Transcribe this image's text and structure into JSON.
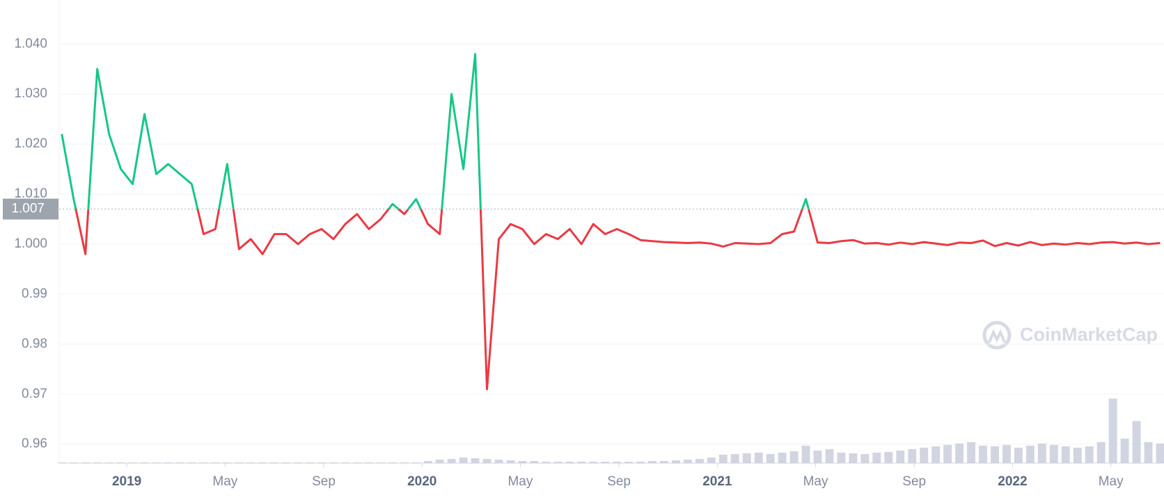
{
  "chart_data": {
    "type": "line",
    "watermark": "CoinMarketCap",
    "baseline": 1.007,
    "xlim": [
      2018.771,
      2022.513
    ],
    "xticks": [
      {
        "value": 2019,
        "label": "2019"
      },
      {
        "value": 2019.333,
        "label": "May"
      },
      {
        "value": 2019.667,
        "label": "Sep"
      },
      {
        "value": 2020,
        "label": "2020"
      },
      {
        "value": 2020.333,
        "label": "May"
      },
      {
        "value": 2020.667,
        "label": "Sep"
      },
      {
        "value": 2021,
        "label": "2021"
      },
      {
        "value": 2021.333,
        "label": "May"
      },
      {
        "value": 2021.667,
        "label": "Sep"
      },
      {
        "value": 2022,
        "label": "2022"
      },
      {
        "value": 2022.333,
        "label": "May"
      }
    ],
    "ylim": [
      0.9562,
      1.0488
    ],
    "yticks": [
      0.96,
      0.97,
      0.98,
      0.99,
      {
        "value": 1.0,
        "label": "1.000"
      },
      {
        "value": 1.01,
        "label": "1.010"
      },
      {
        "value": 1.02,
        "label": "1.020"
      },
      {
        "value": 1.03,
        "label": "1.030"
      },
      {
        "value": 1.04,
        "label": "1.040"
      }
    ],
    "y2lim": [
      0,
      660
    ],
    "grid": true,
    "x": [
      2018.78,
      2018.82,
      2018.86,
      2018.9,
      2018.94,
      2018.98,
      2019.02,
      2019.06,
      2019.1,
      2019.14,
      2019.18,
      2019.22,
      2019.26,
      2019.3,
      2019.34,
      2019.38,
      2019.42,
      2019.46,
      2019.5,
      2019.54,
      2019.58,
      2019.62,
      2019.66,
      2019.7,
      2019.74,
      2019.78,
      2019.82,
      2019.86,
      2019.9,
      2019.94,
      2019.98,
      2020.02,
      2020.06,
      2020.1,
      2020.14,
      2020.18,
      2020.22,
      2020.26,
      2020.3,
      2020.34,
      2020.38,
      2020.42,
      2020.46,
      2020.5,
      2020.54,
      2020.58,
      2020.62,
      2020.66,
      2020.7,
      2020.74,
      2020.78,
      2020.82,
      2020.86,
      2020.9,
      2020.94,
      2020.98,
      2021.02,
      2021.06,
      2021.1,
      2021.14,
      2021.18,
      2021.22,
      2021.26,
      2021.3,
      2021.34,
      2021.38,
      2021.42,
      2021.46,
      2021.5,
      2021.54,
      2021.58,
      2021.62,
      2021.66,
      2021.7,
      2021.74,
      2021.78,
      2021.82,
      2021.86,
      2021.9,
      2021.94,
      2021.98,
      2022.02,
      2022.06,
      2022.1,
      2022.14,
      2022.18,
      2022.22,
      2022.26,
      2022.3,
      2022.34,
      2022.38,
      2022.42,
      2022.46,
      2022.5
    ],
    "series": [
      {
        "name": "Price",
        "color_up": "#16c784",
        "color": "#ea3943",
        "values": [
          1.022,
          1.009,
          0.998,
          1.035,
          1.022,
          1.015,
          1.012,
          1.026,
          1.014,
          1.016,
          1.014,
          1.012,
          1.002,
          1.003,
          1.016,
          0.999,
          1.001,
          0.998,
          1.002,
          1.002,
          1.0,
          1.002,
          1.003,
          1.001,
          1.004,
          1.006,
          1.003,
          1.005,
          1.008,
          1.006,
          1.009,
          1.004,
          1.002,
          1.03,
          1.015,
          1.038,
          0.971,
          1.001,
          1.004,
          1.003,
          1.0,
          1.002,
          1.001,
          1.003,
          1.0,
          1.004,
          1.002,
          1.003,
          1.002,
          1.0008,
          1.0006,
          1.0004,
          1.0003,
          1.0002,
          1.0003,
          1.0001,
          0.9995,
          1.0002,
          1.0001,
          1.0,
          1.0002,
          1.002,
          1.0025,
          1.009,
          1.0003,
          1.0002,
          1.0006,
          1.0008,
          1.0001,
          1.0002,
          0.9999,
          1.0003,
          1.0,
          1.0004,
          1.0001,
          0.9998,
          1.0003,
          1.0002,
          1.0007,
          0.9996,
          1.0002,
          0.9997,
          1.0004,
          0.9998,
          1.0001,
          0.9999,
          1.0002,
          1.0,
          1.0003,
          1.0004,
          1.0001,
          1.0003,
          1.0,
          1.0002
        ]
      },
      {
        "name": "Volume",
        "color": "#c5cbd9",
        "axis": "y2",
        "values": [
          1,
          1,
          1,
          1,
          1,
          1,
          1,
          1,
          1,
          1,
          1,
          1,
          1,
          1,
          1,
          1,
          1,
          1,
          1,
          1,
          1,
          1,
          1,
          1,
          1,
          1,
          1,
          1,
          1,
          1,
          1,
          3,
          5,
          6,
          8,
          7,
          6,
          5,
          4,
          3,
          3,
          2,
          2,
          2,
          2,
          2,
          2,
          2,
          2,
          2,
          3,
          3,
          4,
          5,
          6,
          8,
          12,
          13,
          14,
          15,
          13,
          15,
          17,
          25,
          18,
          20,
          15,
          14,
          13,
          15,
          16,
          18,
          20,
          22,
          24,
          26,
          28,
          30,
          25,
          24,
          26,
          22,
          25,
          28,
          26,
          24,
          22,
          24,
          30,
          92,
          35,
          60,
          30,
          28
        ]
      }
    ]
  }
}
